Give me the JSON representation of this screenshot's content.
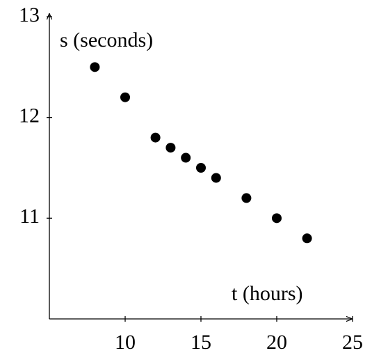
{
  "chart_data": {
    "type": "scatter",
    "x_label": "t (hours)",
    "y_label": "s (seconds)",
    "x": [
      8,
      10,
      12,
      13,
      14,
      15,
      16,
      18,
      20,
      22
    ],
    "values": [
      12.5,
      12.2,
      11.8,
      11.7,
      11.6,
      11.5,
      11.4,
      11.2,
      11.0,
      10.8
    ],
    "color": "#000000",
    "xlim": [
      5,
      25
    ],
    "ylim": [
      10,
      13
    ],
    "xticks": [
      10,
      15,
      20,
      25
    ],
    "yticks": [
      11,
      12,
      13
    ],
    "grid": false
  }
}
